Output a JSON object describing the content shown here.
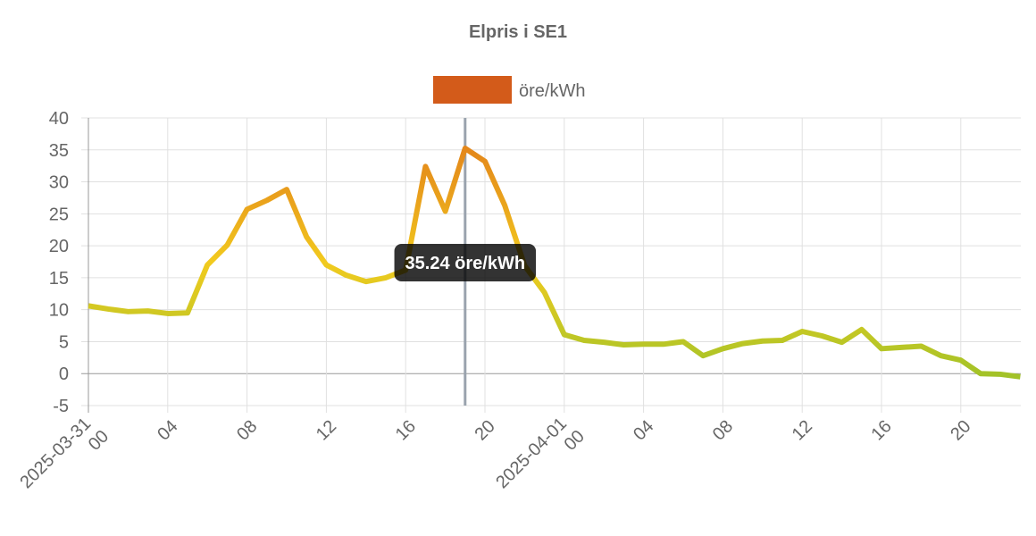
{
  "chart_data": {
    "type": "line",
    "title": "Elpris i SE1",
    "categories": [
      "2025-03-31 00",
      null,
      null,
      null,
      "04",
      null,
      null,
      null,
      "08",
      null,
      null,
      null,
      "12",
      null,
      null,
      null,
      "16",
      null,
      null,
      null,
      "20",
      null,
      null,
      null,
      "2025-04-01 00",
      null,
      null,
      null,
      "04",
      null,
      null,
      null,
      "08",
      null,
      null,
      null,
      "12",
      null,
      null,
      null,
      "16",
      null,
      null,
      null,
      "20",
      null,
      null,
      null
    ],
    "series": [
      {
        "name": "öre/kWh",
        "color": "#d35b1a",
        "values": [
          10.6,
          10.1,
          9.7,
          9.8,
          9.4,
          9.5,
          17.0,
          20.1,
          25.7,
          27.1,
          28.8,
          21.4,
          17.0,
          15.4,
          14.4,
          15.0,
          16.2,
          32.4,
          25.4,
          35.24,
          33.2,
          26.3,
          16.9,
          12.7,
          6.1,
          5.2,
          4.9,
          4.5,
          4.6,
          4.6,
          5.0,
          2.8,
          3.9,
          4.7,
          5.1,
          5.2,
          6.6,
          5.9,
          4.9,
          6.9,
          3.9,
          4.1,
          4.3,
          2.8,
          2.1,
          0.0,
          -0.1,
          -0.5
        ]
      }
    ],
    "ylim": [
      -5,
      40
    ],
    "yticks": [
      -5,
      0,
      5,
      10,
      15,
      20,
      25,
      30,
      35,
      40
    ],
    "grid": true,
    "tooltip": "35.24 öre/kWh"
  }
}
